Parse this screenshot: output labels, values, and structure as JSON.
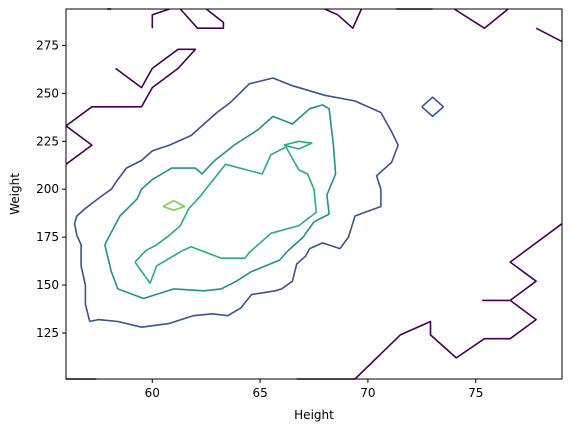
{
  "chart_data": {
    "type": "contour",
    "title": "",
    "xlabel": "Height",
    "ylabel": "Weight",
    "xlim": [
      56,
      79
    ],
    "ylim": [
      101,
      294
    ],
    "xticks": [
      60,
      65,
      70,
      75
    ],
    "yticks": [
      125,
      150,
      175,
      200,
      225,
      250,
      275
    ],
    "grid": false,
    "legend": "none",
    "levels": [
      {
        "color": "#440154",
        "paths": [
          [
            [
              56,
              213
            ],
            [
              57.2,
              223
            ],
            [
              56,
              233
            ]
          ],
          [
            [
              57.9,
              294
            ],
            [
              58.1,
              294
            ]
          ],
          [
            [
              58.3,
              263
            ],
            [
              59.5,
              253
            ],
            [
              60,
              263
            ],
            [
              61.2,
              273
            ],
            [
              62,
              273
            ],
            [
              61.2,
              263
            ],
            [
              60,
              253
            ],
            [
              59.5,
              243
            ],
            [
              58.3,
              243
            ],
            [
              57.9,
              243
            ],
            [
              57.2,
              243
            ],
            [
              56,
              233
            ]
          ],
          [
            [
              60,
              284
            ],
            [
              60,
              291
            ],
            [
              60.8,
              294
            ]
          ],
          [
            [
              61.3,
              294
            ],
            [
              62.1,
              284
            ],
            [
              63.3,
              284
            ],
            [
              63.3,
              287
            ],
            [
              62.5,
              294
            ]
          ],
          [
            [
              68,
              294
            ],
            [
              68.6,
              291
            ],
            [
              69.3,
              284
            ],
            [
              69.7,
              294
            ]
          ],
          [
            [
              71.3,
              294
            ],
            [
              73,
              294
            ]
          ],
          [
            [
              74,
              294
            ],
            [
              75.4,
              284
            ],
            [
              76.5,
              294
            ]
          ],
          [
            [
              77.8,
              284
            ],
            [
              79,
              277
            ]
          ],
          [
            [
              56,
              101
            ],
            [
              57.4,
              101
            ]
          ],
          [
            [
              66.7,
              101
            ],
            [
              69.4,
              101
            ],
            [
              71.5,
              124
            ],
            [
              72.9,
              131
            ],
            [
              72.9,
              124
            ],
            [
              74.1,
              112
            ],
            [
              75.4,
              122
            ],
            [
              76.6,
              122
            ],
            [
              77.8,
              132
            ],
            [
              76.6,
              142
            ],
            [
              75.3,
              142
            ]
          ],
          [
            [
              79,
              182
            ],
            [
              76.6,
              162
            ],
            [
              77.8,
              152
            ],
            [
              76.6,
              142
            ]
          ]
        ]
      },
      {
        "color": "#3b528b",
        "paths": [
          [
            [
              72.5,
              243
            ],
            [
              73,
              248
            ],
            [
              73.5,
              243
            ],
            [
              73,
              238
            ],
            [
              72.5,
              243
            ]
          ],
          [
            [
              57.1,
              131
            ],
            [
              57.5,
              132
            ],
            [
              58.4,
              131
            ],
            [
              59.5,
              128
            ],
            [
              60.8,
              130
            ],
            [
              61.9,
              134
            ],
            [
              62.8,
              135
            ],
            [
              63.5,
              134
            ],
            [
              64.1,
              138
            ],
            [
              64.6,
              145
            ],
            [
              65.7,
              147
            ],
            [
              66,
              148
            ],
            [
              66.5,
              152
            ],
            [
              66.7,
              161
            ],
            [
              67.1,
              165
            ],
            [
              67.3,
              169
            ],
            [
              67.9,
              172
            ],
            [
              68.7,
              169
            ],
            [
              69.1,
              175
            ],
            [
              69.4,
              186
            ],
            [
              70.6,
              191
            ],
            [
              70.6,
              200
            ],
            [
              70.4,
              207
            ],
            [
              71.1,
              214
            ],
            [
              71.4,
              223
            ],
            [
              71.1,
              230
            ],
            [
              70.6,
              240
            ],
            [
              69.4,
              246
            ],
            [
              68,
              249
            ],
            [
              66.5,
              254
            ],
            [
              65.6,
              258
            ],
            [
              64.5,
              255
            ],
            [
              63.6,
              245
            ],
            [
              63,
              240
            ],
            [
              62.3,
              233
            ],
            [
              61.8,
              228
            ],
            [
              60.8,
              223
            ],
            [
              60,
              220
            ],
            [
              59.5,
              215
            ],
            [
              58.8,
              211
            ],
            [
              58.4,
              205
            ],
            [
              58.1,
              200
            ],
            [
              57.6,
              196
            ],
            [
              56.9,
              190
            ],
            [
              56.5,
              186
            ],
            [
              56.4,
              182
            ],
            [
              56.5,
              176
            ],
            [
              56.7,
              171
            ],
            [
              56.7,
              160
            ],
            [
              56.9,
              150
            ],
            [
              56.9,
              140
            ],
            [
              57.1,
              131
            ]
          ]
        ]
      },
      {
        "color": "#21908d",
        "paths": [
          [
            [
              57.8,
              171
            ],
            [
              58.5,
              186
            ],
            [
              59.3,
              195
            ],
            [
              59.5,
              200
            ],
            [
              60,
              205
            ],
            [
              60.9,
              211
            ],
            [
              62,
              211
            ],
            [
              62.3,
              208
            ],
            [
              62.9,
              215
            ],
            [
              63.8,
              223
            ],
            [
              64.9,
              231
            ],
            [
              65.6,
              238
            ],
            [
              66.5,
              234
            ],
            [
              67.3,
              242
            ],
            [
              67.9,
              244
            ],
            [
              68.2,
              242
            ],
            [
              68.4,
              223
            ],
            [
              68.5,
              208
            ],
            [
              68.1,
              197
            ],
            [
              68.2,
              187
            ],
            [
              67.5,
              183
            ],
            [
              67,
              175
            ],
            [
              66.3,
              168
            ],
            [
              65.9,
              163
            ],
            [
              64.6,
              157
            ],
            [
              63.9,
              152
            ],
            [
              63.2,
              148
            ],
            [
              62.4,
              147
            ],
            [
              61,
              148
            ],
            [
              59.6,
              143
            ],
            [
              58.4,
              148
            ],
            [
              58.1,
              157
            ],
            [
              57.8,
              171
            ]
          ]
        ]
      },
      {
        "color": "#27ad81",
        "paths": [
          [
            [
              59.2,
              162
            ],
            [
              59.7,
              168
            ],
            [
              60.2,
              171
            ],
            [
              60.8,
              176
            ],
            [
              61.3,
              181
            ],
            [
              61.7,
              190
            ],
            [
              62.2,
              196
            ],
            [
              63.4,
              213
            ],
            [
              64.4,
              210
            ],
            [
              65.1,
              208
            ],
            [
              65.5,
              218
            ],
            [
              66.2,
              222
            ],
            [
              66.8,
              210
            ],
            [
              67.2,
              208
            ],
            [
              67.5,
              200
            ],
            [
              67.6,
              188
            ],
            [
              66.8,
              181
            ],
            [
              65.5,
              177
            ],
            [
              64.5,
              167
            ],
            [
              64.3,
              164
            ],
            [
              63.2,
              164
            ],
            [
              61.8,
              170
            ],
            [
              61.4,
              168
            ],
            [
              60.2,
              160
            ],
            [
              59.9,
              151
            ],
            [
              59.2,
              162
            ]
          ],
          [
            [
              66.1,
              223
            ],
            [
              66.8,
              225
            ],
            [
              67.4,
              224
            ],
            [
              66.8,
              221
            ],
            [
              66.1,
              223
            ]
          ]
        ]
      },
      {
        "color": "#7ad151",
        "paths": [
          [
            [
              60.5,
              191
            ],
            [
              61,
              194
            ],
            [
              61.5,
              191
            ],
            [
              61,
              189
            ],
            [
              60.5,
              191
            ]
          ]
        ]
      }
    ]
  }
}
